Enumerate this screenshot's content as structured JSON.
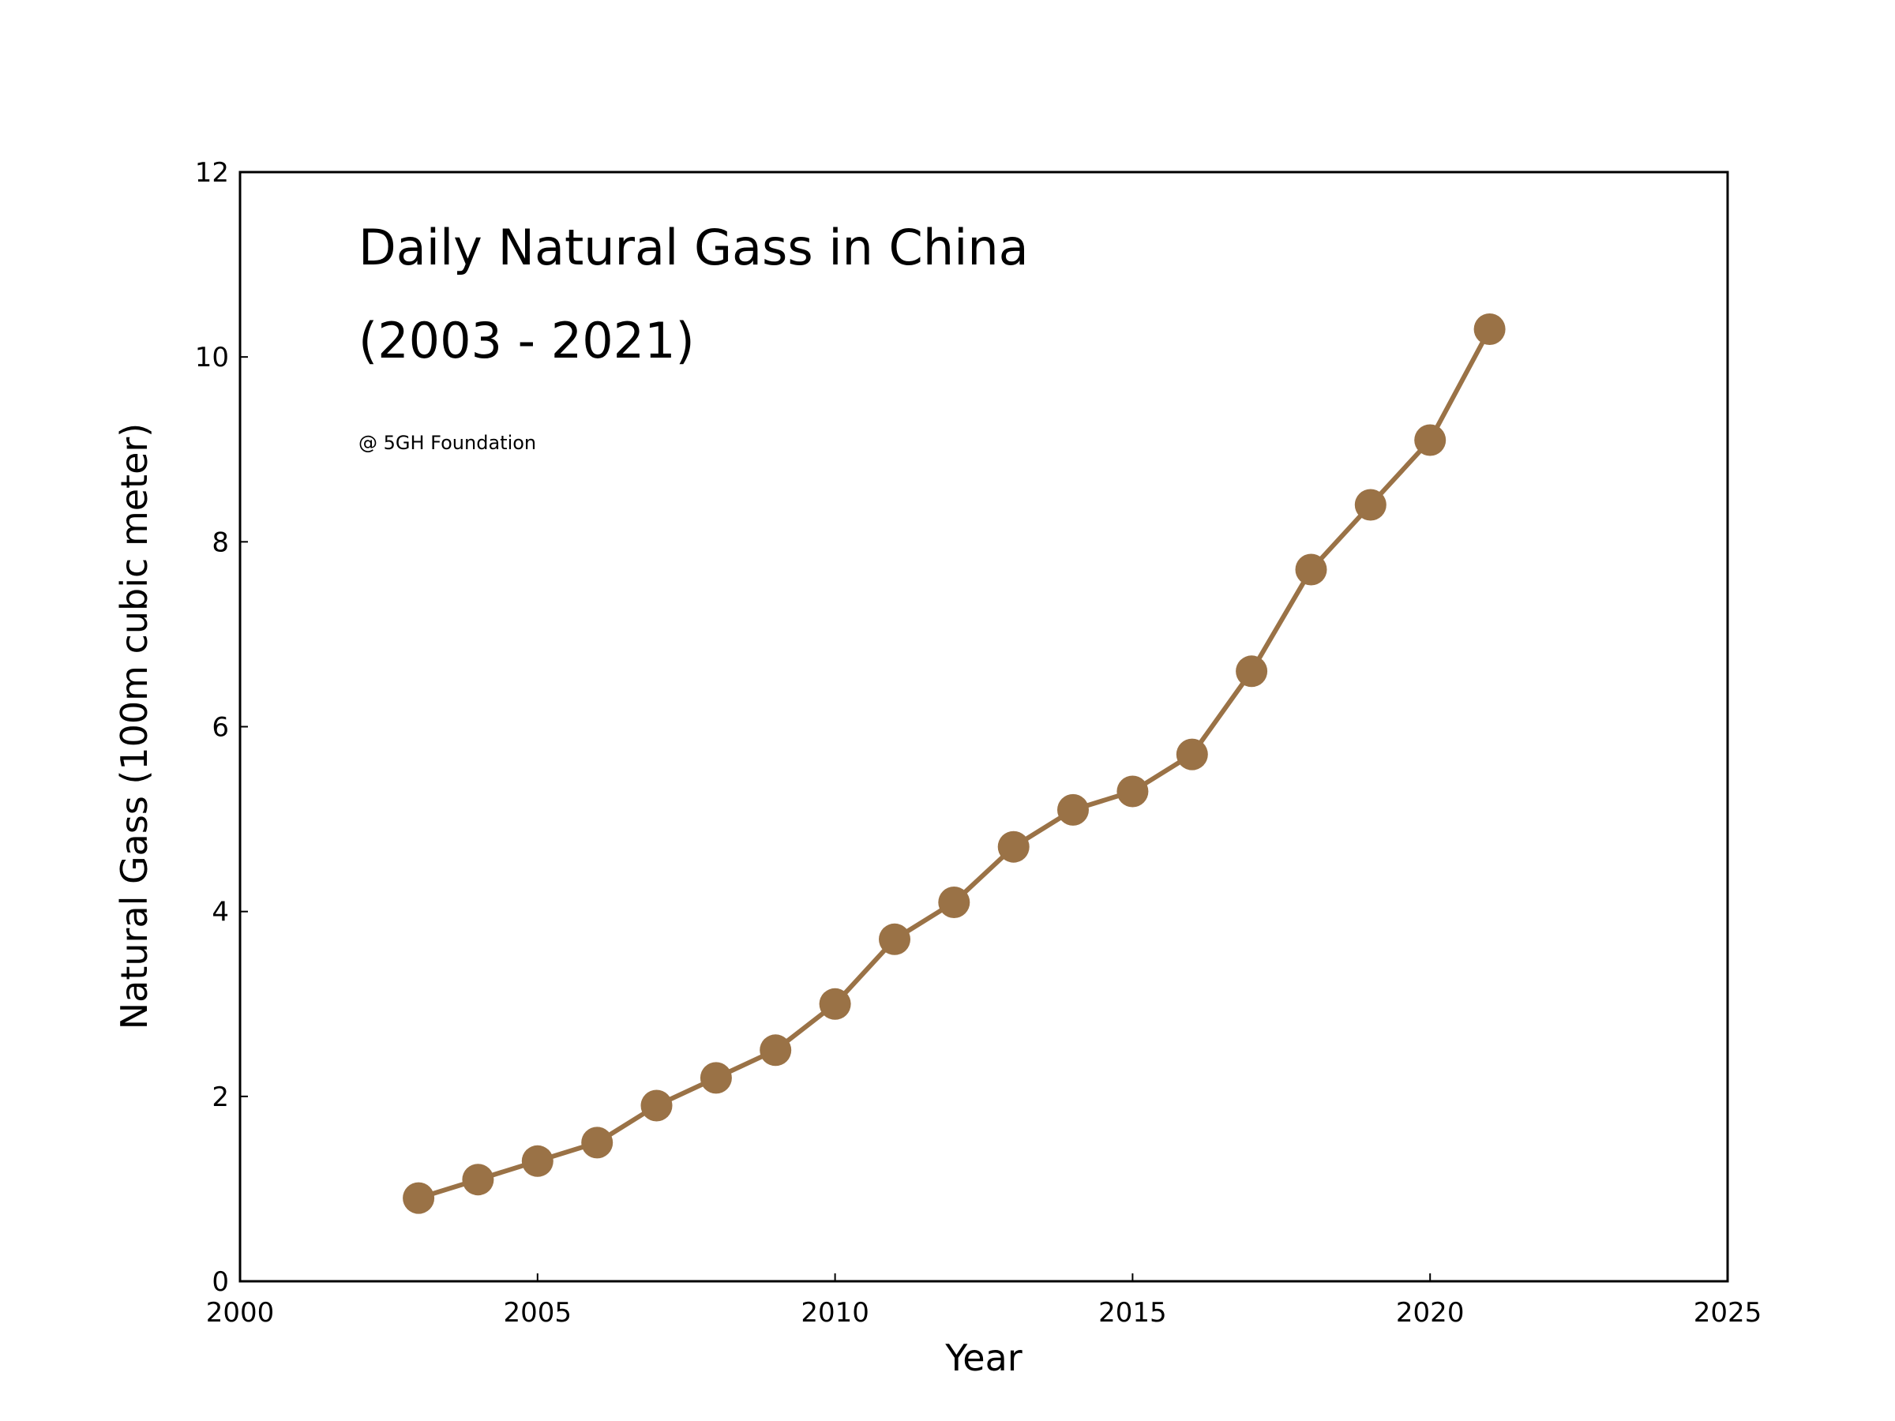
{
  "chart_data": {
    "type": "line",
    "title": "Daily Natural Gass in China",
    "subtitle": "(2003 - 2021)",
    "annotation": "@ 5GH Foundation",
    "xlabel": "Year",
    "ylabel": "Natural Gass (100m cubic meter)",
    "xlim": [
      2000,
      2025
    ],
    "ylim": [
      0,
      12
    ],
    "xticks": [
      "2000",
      "2005",
      "2010",
      "2015",
      "2020",
      "2025"
    ],
    "yticks": [
      "0",
      "2",
      "4",
      "6",
      "8",
      "10",
      "12"
    ],
    "grid": false,
    "color": "#9a7246",
    "series": [
      {
        "x": [
          2003,
          2004,
          2005,
          2006,
          2007,
          2008,
          2009,
          2010,
          2011,
          2012,
          2013,
          2014,
          2015,
          2016,
          2017,
          2018,
          2019,
          2020,
          2021
        ],
        "values": [
          0.9,
          1.1,
          1.3,
          1.5,
          1.9,
          2.2,
          2.5,
          3.0,
          3.7,
          4.1,
          4.7,
          5.1,
          5.3,
          5.7,
          6.6,
          7.7,
          8.4,
          9.1,
          10.3
        ]
      }
    ]
  }
}
